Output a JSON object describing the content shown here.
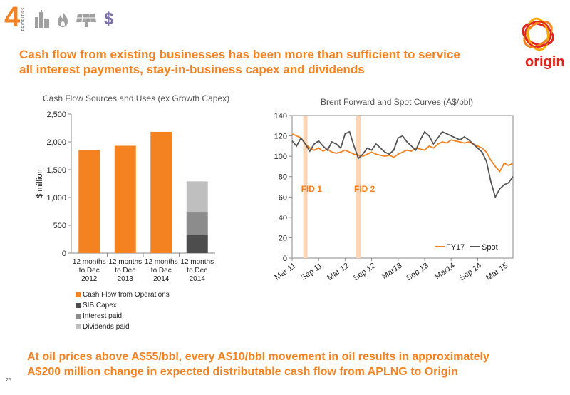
{
  "header": {
    "number": "4",
    "priorities_label": "PRIORITIES",
    "icons": [
      "city-icon",
      "flame-icon",
      "solar-panel-icon",
      "dollar-icon"
    ],
    "dollar_glyph": "$"
  },
  "brand": {
    "name": "origin",
    "color": "#E2231A"
  },
  "title": {
    "line1": "Cash flow from existing businesses has been more than sufficient to service",
    "line2": "all interest payments, stay-in-business capex and dividends"
  },
  "footer": {
    "line1": "At oil prices above A$55/bbl, every A$10/bbl movement in oil results in approximately",
    "line2": "A$200 million change in expected distributable cash flow from APLNG to Origin",
    "page_number": "25"
  },
  "colors": {
    "accent": "#F58220",
    "sib": "#4D4D4D",
    "interest": "#8C8C8C",
    "dividends": "#BFBFBF",
    "spot": "#555555",
    "fid_band": "#FBD5B5"
  },
  "chart_data": [
    {
      "type": "bar",
      "title": "Cash Flow Sources and Uses (ex Growth Capex)",
      "ylabel": "$ million",
      "ylim": [
        0,
        2500
      ],
      "yticks": [
        "0",
        "500",
        "1,000",
        "1,500",
        "2,000",
        "2,500"
      ],
      "ytick_values": [
        0,
        500,
        1000,
        1500,
        2000,
        2500
      ],
      "categories": [
        [
          "12 months",
          "to Dec",
          "2012"
        ],
        [
          "12 months",
          "to Dec",
          "2013"
        ],
        [
          "12 months",
          "to Dec",
          "2014"
        ],
        [
          "12 months",
          "to Dec",
          "2014"
        ]
      ],
      "series": [
        {
          "name": "Cash Flow from Operations",
          "values": [
            1850,
            1930,
            2180,
            0
          ]
        },
        {
          "name": "SIB Capex",
          "values": [
            0,
            0,
            0,
            330
          ]
        },
        {
          "name": "Interest paid",
          "values": [
            0,
            0,
            0,
            400
          ]
        },
        {
          "name": "Dividends paid",
          "values": [
            0,
            0,
            0,
            560
          ]
        }
      ],
      "stacked": true,
      "legend_position": "bottom"
    },
    {
      "type": "line",
      "title": "Brent Forward and Spot Curves (A$/bbl)",
      "ylim": [
        0,
        140
      ],
      "yticks": [
        "0",
        "20",
        "40",
        "60",
        "80",
        "100",
        "120",
        "140"
      ],
      "ytick_values": [
        0,
        20,
        40,
        60,
        80,
        100,
        120,
        140
      ],
      "xlim": [
        0,
        50
      ],
      "x_ticks": [
        "Mar 11",
        "Sep 11",
        "Mar 12",
        "Sep 12",
        "Mar13",
        "Sep 13",
        "Mar14",
        "Sep 14",
        "Mar 15"
      ],
      "x_tick_positions": [
        0,
        6,
        12,
        18,
        24,
        30,
        36,
        42,
        48
      ],
      "legend_position": "bottom-right",
      "annotations": [
        {
          "label": "FID 1",
          "x": 3
        },
        {
          "label": "FID 2",
          "x": 15
        }
      ],
      "series": [
        {
          "name": "FY17",
          "x": [
            0,
            1,
            2,
            3,
            4,
            5,
            6,
            7,
            8,
            9,
            10,
            11,
            12,
            13,
            14,
            15,
            16,
            17,
            18,
            19,
            20,
            21,
            22,
            23,
            24,
            25,
            26,
            27,
            28,
            29,
            30,
            31,
            32,
            33,
            34,
            35,
            36,
            37,
            38,
            39,
            40,
            41,
            42,
            43,
            44,
            45,
            46,
            47,
            48,
            49,
            50
          ],
          "values": [
            122,
            120,
            118,
            112,
            108,
            106,
            108,
            105,
            107,
            104,
            103,
            104,
            106,
            104,
            102,
            101,
            100,
            102,
            104,
            102,
            101,
            100,
            101,
            99,
            102,
            104,
            106,
            105,
            108,
            107,
            106,
            110,
            108,
            112,
            114,
            113,
            116,
            115,
            114,
            113,
            114,
            112,
            110,
            108,
            104,
            96,
            90,
            85,
            93,
            91,
            93
          ]
        },
        {
          "name": "Spot",
          "x": [
            0,
            1,
            2,
            3,
            4,
            5,
            6,
            7,
            8,
            9,
            10,
            11,
            12,
            13,
            14,
            15,
            16,
            17,
            18,
            19,
            20,
            21,
            22,
            23,
            24,
            25,
            26,
            27,
            28,
            29,
            30,
            31,
            32,
            33,
            34,
            35,
            36,
            37,
            38,
            39,
            40,
            41,
            42,
            43,
            44,
            45,
            46,
            47,
            48,
            49,
            50
          ],
          "values": [
            115,
            110,
            118,
            112,
            105,
            112,
            115,
            110,
            106,
            114,
            112,
            108,
            122,
            124,
            110,
            98,
            102,
            108,
            106,
            112,
            108,
            104,
            102,
            106,
            118,
            120,
            114,
            110,
            106,
            116,
            124,
            120,
            112,
            118,
            124,
            122,
            120,
            118,
            116,
            119,
            116,
            112,
            108,
            104,
            95,
            75,
            60,
            68,
            72,
            74,
            80
          ]
        }
      ]
    }
  ]
}
